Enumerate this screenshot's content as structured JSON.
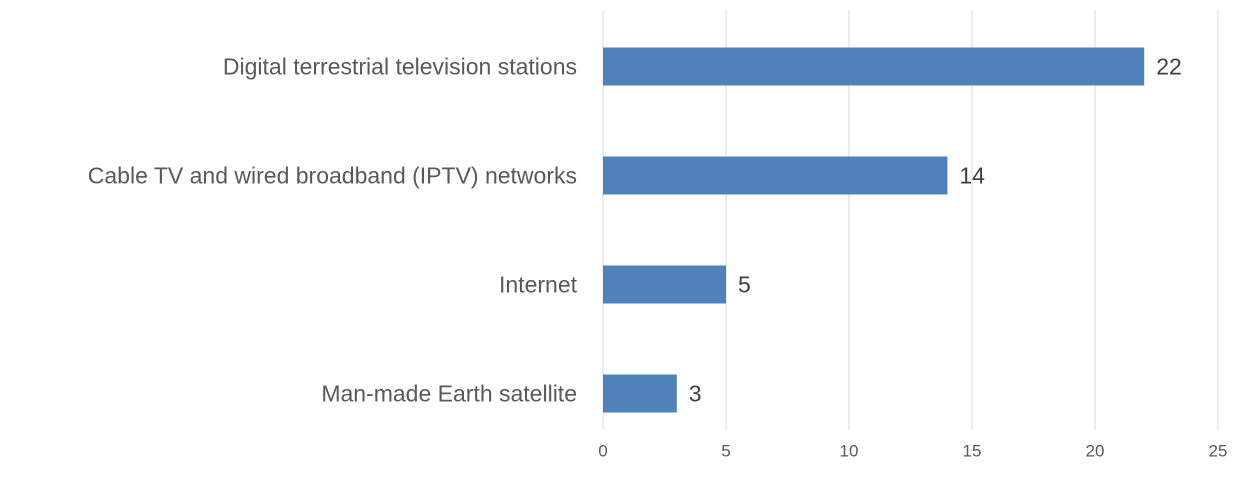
{
  "chart_data": {
    "type": "bar",
    "orientation": "horizontal",
    "categories": [
      "Digital terrestrial television stations",
      "Cable TV and wired broadband (IPTV) networks",
      "Internet",
      "Man-made Earth satellite"
    ],
    "values": [
      22,
      14,
      5,
      3
    ],
    "color": "#4f81bd",
    "xlim": [
      0,
      25
    ],
    "xticks": [
      0,
      5,
      10,
      15,
      20,
      25
    ],
    "grid": true
  }
}
